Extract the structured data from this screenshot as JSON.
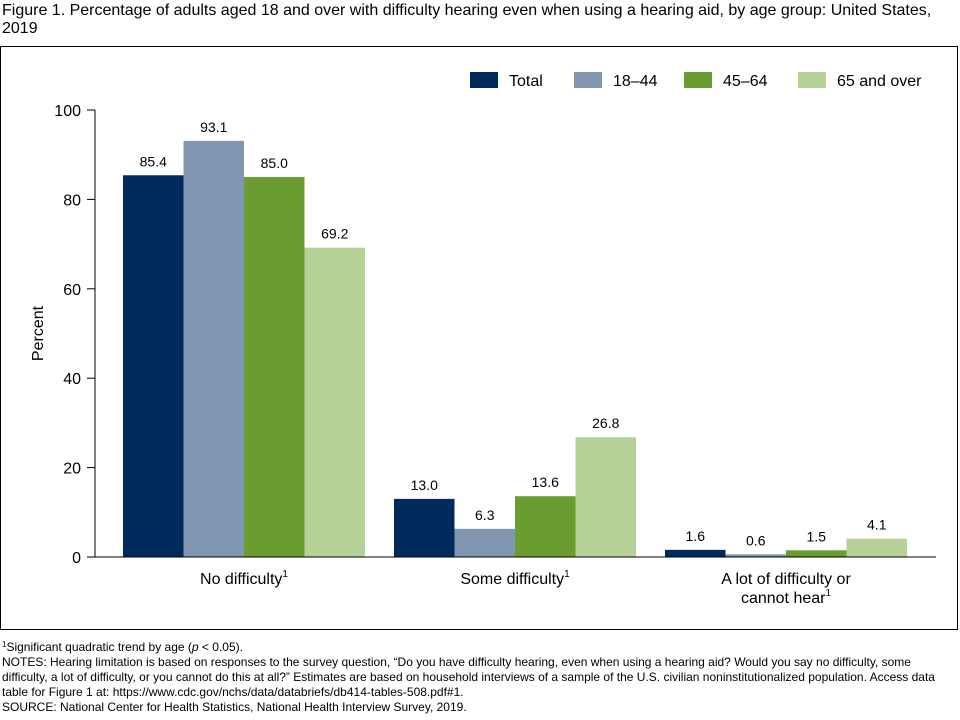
{
  "title": "Figure 1. Percentage of adults aged 18 and over with difficulty hearing even when using a hearing aid, by age group: United States, 2019",
  "chart_data": {
    "type": "bar",
    "title": "Figure 1. Percentage of adults aged 18 and over with difficulty hearing even when using a hearing aid, by age group: United States, 2019",
    "ylabel": "Percent",
    "xlabel": "",
    "ylim": [
      0,
      100
    ],
    "yticks": [
      "0",
      "20",
      "40",
      "60",
      "80",
      "100"
    ],
    "grid": false,
    "legend_position": "top-right",
    "categories": [
      {
        "lines": [
          "No difficulty"
        ],
        "marker": "1"
      },
      {
        "lines": [
          "Some difficulty"
        ],
        "marker": "1"
      },
      {
        "lines": [
          "A lot of difficulty or",
          "cannot hear"
        ],
        "marker": "1"
      }
    ],
    "series": [
      {
        "name": "Total",
        "color": "#002a5c",
        "values": [
          85.4,
          13.0,
          1.6
        ],
        "labels": [
          "85.4",
          "13.0",
          "1.6"
        ]
      },
      {
        "name": "18–44",
        "color": "#8096b1",
        "values": [
          93.1,
          6.3,
          0.6
        ],
        "labels": [
          "93.1",
          "6.3",
          "0.6"
        ]
      },
      {
        "name": "45–64",
        "color": "#6b9c2f",
        "values": [
          85.0,
          13.6,
          1.5
        ],
        "labels": [
          "85.0",
          "13.6",
          "1.5"
        ]
      },
      {
        "name": "65 and over",
        "color": "#b5d197",
        "values": [
          69.2,
          26.8,
          4.1
        ],
        "labels": [
          "69.2",
          "26.8",
          "4.1"
        ]
      }
    ]
  },
  "footnotes": {
    "marker": "1",
    "significance": "Significant quadratic trend by age (",
    "significance_p": "p",
    "significance_tail": " < 0.05).",
    "notes": "NOTES: Hearing limitation is based on responses to the survey question, “Do you have difficulty hearing, even when using a hearing aid? Would you say no difficulty, some difficulty, a lot of difficulty, or you cannot do this at all?” Estimates are based on household interviews of a sample of the U.S. civilian noninstitutionalized population. Access data table for Figure 1 at: https://www.cdc.gov/nchs/data/databriefs/db414-tables-508.pdf#1.",
    "source": "SOURCE: National Center for Health Statistics, National Health Interview Survey, 2019."
  }
}
